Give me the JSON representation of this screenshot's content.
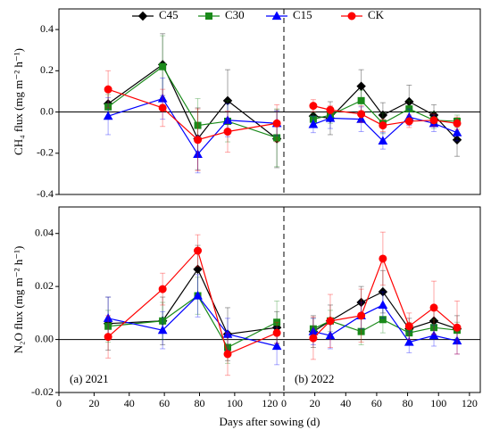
{
  "chart_data": [
    {
      "type": "line",
      "ylabel": "CH₄ flux (mg m⁻² h⁻¹)",
      "x": [
        28,
        59,
        79,
        96,
        124
      ],
      "xlim": [
        0,
        128
      ],
      "ylim": [
        -0.4,
        0.5
      ],
      "yticks": [
        -0.4,
        -0.2,
        {
          "value": 0,
          "label": "0.0"
        },
        0.2,
        0.4
      ],
      "series": [
        {
          "name": "C45",
          "color": "#000000",
          "marker": "diamond",
          "values": [
            0.04,
            0.23,
            -0.13,
            0.055,
            -0.13
          ],
          "errors": [
            0.07,
            0.15,
            0.15,
            0.15,
            0.14
          ]
        },
        {
          "name": "C30",
          "color": "#1a8a1a",
          "marker": "square",
          "values": [
            0.025,
            0.22,
            -0.065,
            -0.045,
            -0.125
          ],
          "errors": [
            0.06,
            0.15,
            0.13,
            0.1,
            0.14
          ]
        },
        {
          "name": "C15",
          "color": "#0000ff",
          "marker": "triangle",
          "values": [
            -0.02,
            0.065,
            -0.205,
            -0.04,
            -0.055
          ],
          "errors": [
            0.09,
            0.1,
            0.09,
            0.08,
            0.06
          ]
        },
        {
          "name": "CK",
          "color": "#ff0000",
          "marker": "circle",
          "values": [
            0.11,
            0.02,
            -0.135,
            -0.095,
            -0.055
          ],
          "errors": [
            0.09,
            0.09,
            0.15,
            0.1,
            0.09
          ]
        }
      ]
    },
    {
      "type": "line",
      "x": [
        19,
        30,
        50,
        64,
        81,
        97,
        112
      ],
      "xlim": [
        0,
        127
      ],
      "ylim": [
        -0.4,
        0.5
      ],
      "series": [
        {
          "color": "#000000",
          "marker": "diamond",
          "values": [
            -0.02,
            -0.03,
            0.125,
            -0.015,
            0.05,
            -0.015,
            -0.135
          ],
          "errors": [
            0.04,
            0.08,
            0.08,
            0.06,
            0.08,
            0.05,
            0.08
          ]
        },
        {
          "color": "#1a8a1a",
          "marker": "square",
          "values": [
            -0.035,
            -0.015,
            0.055,
            -0.055,
            0.015,
            -0.04,
            -0.045
          ],
          "errors": [
            0.03,
            0.04,
            0.05,
            0.05,
            0.04,
            0.04,
            0.03
          ]
        },
        {
          "color": "#0000ff",
          "marker": "triangle",
          "values": [
            -0.06,
            -0.03,
            -0.035,
            -0.14,
            -0.025,
            -0.055,
            -0.1
          ],
          "errors": [
            0.04,
            0.05,
            0.06,
            0.04,
            0.04,
            0.04,
            0.04
          ]
        },
        {
          "color": "#ff0000",
          "marker": "circle",
          "values": [
            0.03,
            0.01,
            -0.01,
            -0.065,
            -0.045,
            -0.04,
            -0.055
          ],
          "errors": [
            0.03,
            0.02,
            0.04,
            0.03,
            0.03,
            0.03,
            0.03
          ]
        }
      ]
    },
    {
      "type": "line",
      "ylabel": "N₂O flux (mg m⁻² h⁻¹)",
      "xlabel": "Days after sowing (d)",
      "annotation": "(a) 2021",
      "x": [
        28,
        59,
        79,
        96,
        124
      ],
      "xlim": [
        0,
        128
      ],
      "ylim": [
        -0.02,
        0.05
      ],
      "xticks": [
        0,
        20,
        40,
        60,
        80,
        100,
        120
      ],
      "yticks": [
        -0.02,
        {
          "value": 0,
          "label": "0.00"
        },
        0.02,
        0.04
      ],
      "series": [
        {
          "color": "#000000",
          "marker": "diamond",
          "values": [
            0.006,
            0.007,
            0.0265,
            0.002,
            0.0045
          ],
          "errors": [
            0.01,
            0.009,
            0.009,
            0.01,
            0.006
          ]
        },
        {
          "color": "#1a8a1a",
          "marker": "square",
          "values": [
            0.005,
            0.007,
            0.0165,
            -0.003,
            0.0065
          ],
          "errors": [
            0.006,
            0.007,
            0.007,
            0.006,
            0.008
          ]
        },
        {
          "color": "#0000ff",
          "marker": "triangle",
          "values": [
            0.008,
            0.0035,
            0.0165,
            0.002,
            -0.0025
          ],
          "errors": [
            0.008,
            0.007,
            0.008,
            0.006,
            0.007
          ]
        },
        {
          "color": "#ff0000",
          "marker": "circle",
          "values": [
            0.001,
            0.019,
            0.0335,
            -0.0055,
            0.0025
          ],
          "errors": [
            0.008,
            0.006,
            0.006,
            0.008,
            0.004
          ]
        }
      ]
    },
    {
      "type": "line",
      "annotation": "(b) 2022",
      "x": [
        19,
        30,
        50,
        64,
        81,
        97,
        112
      ],
      "xlim": [
        0,
        127
      ],
      "ylim": [
        -0.02,
        0.05
      ],
      "xticks": [
        0,
        20,
        40,
        60,
        80,
        100,
        120
      ],
      "series": [
        {
          "color": "#000000",
          "marker": "diamond",
          "values": [
            0.003,
            0.007,
            0.014,
            0.018,
            0.004,
            0.007,
            0.004
          ],
          "errors": [
            0.006,
            0.006,
            0.006,
            0.008,
            0.004,
            0.005,
            0.005
          ]
        },
        {
          "color": "#1a8a1a",
          "marker": "square",
          "values": [
            0.004,
            0.007,
            0.003,
            0.0075,
            0.0025,
            0.0045,
            0.0035
          ],
          "errors": [
            0.004,
            0.004,
            0.005,
            0.005,
            0.004,
            0.003,
            0.003
          ]
        },
        {
          "color": "#0000ff",
          "marker": "triangle",
          "values": [
            0.003,
            0.0015,
            0.009,
            0.013,
            -0.001,
            0.0015,
            -0.0005
          ],
          "errors": [
            0.005,
            0.005,
            0.005,
            0.005,
            0.004,
            0.004,
            0.005
          ]
        },
        {
          "color": "#ff0000",
          "marker": "circle",
          "values": [
            0.0005,
            0.007,
            0.009,
            0.0305,
            0.005,
            0.012,
            0.0045
          ],
          "errors": [
            0.008,
            0.01,
            0.01,
            0.01,
            0.005,
            0.01,
            0.01
          ]
        }
      ]
    }
  ]
}
